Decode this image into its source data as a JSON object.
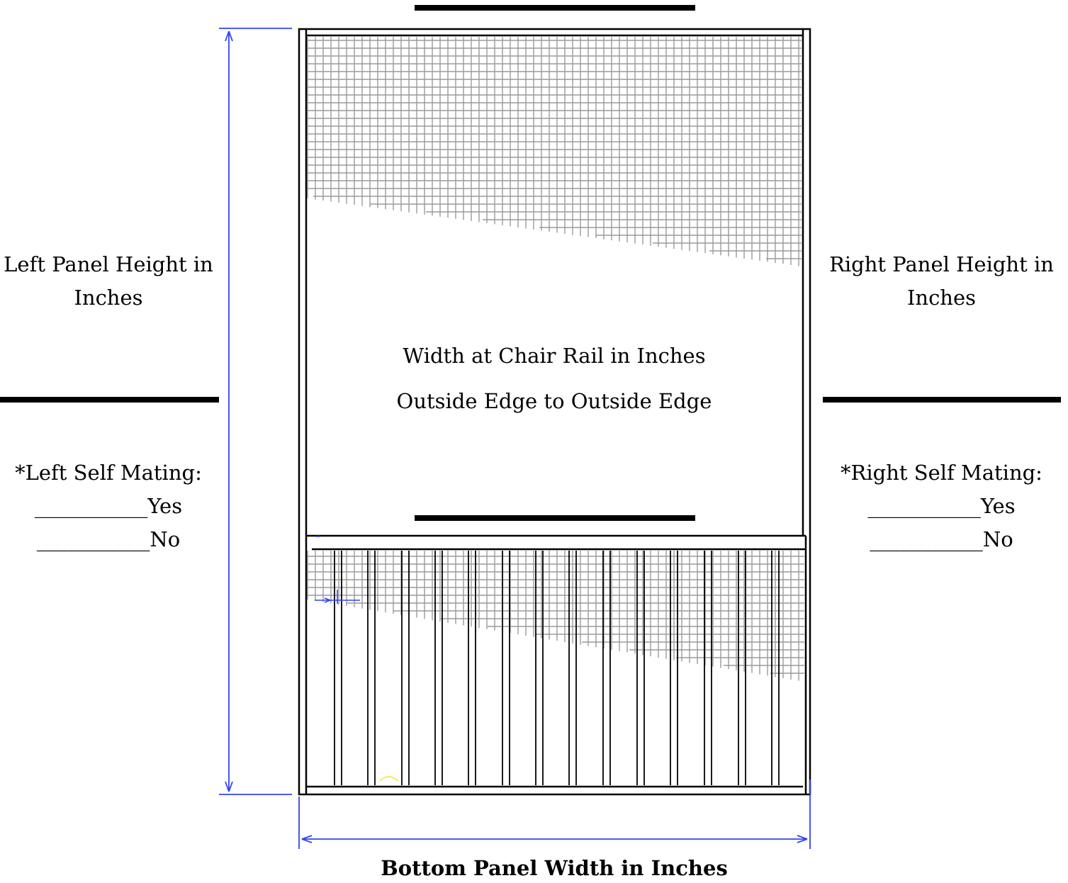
{
  "left_panel": {
    "label_line1": "Left Panel Height in",
    "label_line2": "Inches",
    "self_mating_label": "*Left Self Mating:",
    "yes_option": "___________Yes",
    "no_option": "___________No"
  },
  "right_panel": {
    "label_line1": "Right Panel Height in",
    "label_line2": "Inches",
    "self_mating_label": "*Right Self Mating:",
    "yes_option": "___________Yes",
    "no_option": "___________No"
  },
  "center": {
    "width_label": "Width at Chair Rail in Inches",
    "edge_label": "Outside Edge to Outside Edge"
  },
  "bottom": {
    "width_label": "Bottom Panel Width in Inches"
  },
  "colors": {
    "dimension_line": "#3344ee",
    "frame": "#000000",
    "mesh": "#9a9a9a",
    "blank_line": "#000000"
  }
}
